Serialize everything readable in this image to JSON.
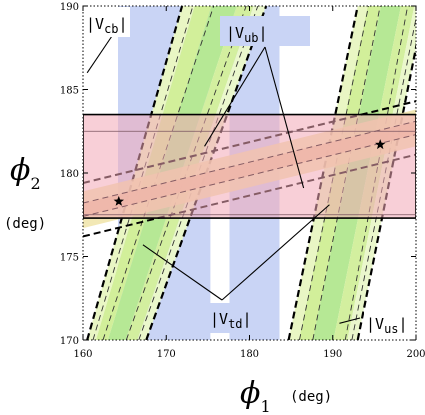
{
  "chart_data": {
    "type": "area",
    "title": "",
    "xlabel": "ϕ",
    "xlabel_sub": "1",
    "xunit": "(deg)",
    "ylabel": "ϕ",
    "ylabel_sub": "2",
    "yunit": "(deg)",
    "xlim": [
      160,
      200
    ],
    "ylim": [
      170,
      190
    ],
    "xticks": [
      160,
      170,
      180,
      190,
      200
    ],
    "yticks": [
      170,
      175,
      180,
      185,
      190
    ],
    "grid": false,
    "series": [
      {
        "name": "|V_td|",
        "label_text": "|V",
        "label_sub": "td",
        "label_end": "|",
        "color": "#c9d4f5",
        "polygons": [
          [
            [
              166.9,
              170
            ],
            [
              175.3,
              170
            ],
            [
              175.3,
              190
            ],
            [
              166.9,
              190
            ]
          ],
          [
            [
              164.2,
              170
            ],
            [
              167.0,
              170
            ],
            [
              167.0,
              190
            ],
            [
              164.2,
              190
            ]
          ],
          [
            [
              177.6,
              170
            ],
            [
              183.6,
              170
            ],
            [
              183.6,
              190
            ],
            [
              177.6,
              190
            ]
          ]
        ]
      },
      {
        "name": "|V_cb|",
        "label_text": "|V",
        "label_sub": "cb",
        "label_end": "|",
        "colors": [
          "#e9f6c4",
          "#d2ef9a",
          "#b6e895",
          "#d3ef9f",
          "#eaf7cc"
        ],
        "bands": [
          [
            [
              160.5,
              170.0
            ],
            [
              163.4,
              170.0
            ],
            [
              177.5,
              190.0
            ],
            [
              171.9,
              190.0
            ]
          ],
          [
            [
              163.4,
              170.0
            ],
            [
              167.6,
              170.0
            ],
            [
              182.0,
              190.0
            ],
            [
              177.5,
              190.0
            ]
          ]
        ],
        "dashed_lines": [
          [
            [
              161.2,
              170.0
            ],
            [
              173.2,
              190.0
            ]
          ],
          [
            [
              162.4,
              170.0
            ],
            [
              175.7,
              190.0
            ]
          ],
          [
            [
              165.2,
              170.0
            ],
            [
              179.6,
              190.0
            ]
          ],
          [
            [
              166.7,
              170.0
            ],
            [
              181.0,
              190.0
            ]
          ]
        ]
      },
      {
        "name": "|V_us|",
        "label_text": "|V",
        "label_sub": "us",
        "label_end": "|",
        "colors": [
          "#e9f6c4",
          "#d2ef9a",
          "#b6e895",
          "#d3ef9f",
          "#eaf7cc"
        ],
        "bands": [
          [
            [
              184.7,
              170.0
            ],
            [
              189.9,
              170.0
            ],
            [
              197.4,
              190.0
            ],
            [
              193.0,
              190.0
            ]
          ],
          [
            [
              189.9,
              170.0
            ],
            [
              193.0,
              170.0
            ],
            [
              201.0,
              190.0
            ],
            [
              197.4,
              190.0
            ]
          ]
        ],
        "dashed_lines": [
          [
            [
              186.0,
              170.0
            ],
            [
              194.3,
              190.0
            ]
          ],
          [
            [
              187.6,
              170.0
            ],
            [
              195.7,
              190.0
            ]
          ],
          [
            [
              191.5,
              170.0
            ],
            [
              199.0,
              190.0
            ]
          ],
          [
            [
              192.3,
              170.0
            ],
            [
              200.3,
              190.0
            ]
          ]
        ]
      },
      {
        "name": "|V_ub|",
        "label_text": "|V",
        "label_sub": "ub",
        "label_end": "|",
        "band_fill": "#f0e4a8",
        "core_fill": "#e9c99b",
        "band": [
          [
            160,
            176.7
          ],
          [
            160,
            178.9
          ],
          [
            200,
            183.8
          ],
          [
            200,
            181.6
          ]
        ],
        "core": [
          [
            160,
            177.4
          ],
          [
            160,
            178.2
          ],
          [
            200,
            183.1
          ],
          [
            200,
            182.3
          ]
        ],
        "dashed_lines": [
          [
            [
              160,
              176.2
            ],
            [
              200,
              181.1
            ]
          ],
          [
            [
              160,
              177.4
            ],
            [
              200,
              182.3
            ]
          ],
          [
            [
              160,
              178.2
            ],
            [
              200,
              183.1
            ]
          ],
          [
            [
              160,
              179.4
            ],
            [
              200,
              184.3
            ]
          ]
        ]
      },
      {
        "name": "phi2 band",
        "color": "#f3a8b6",
        "alpha": 0.55,
        "rect": [
          [
            160,
            177.3
          ],
          [
            200,
            183.5
          ]
        ],
        "inner_lines": [
          177.5,
          182.5
        ]
      }
    ],
    "markers": [
      {
        "x": 164.3,
        "y": 178.3,
        "symbol": "star"
      },
      {
        "x": 195.7,
        "y": 181.7,
        "symbol": "star"
      }
    ],
    "annotations": [
      {
        "label": "|V_cb|",
        "pointers": [
          [
            160.5,
            186.0
          ]
        ]
      },
      {
        "label": "|V_ub|",
        "pointers": [
          [
            174.6,
            181.6
          ],
          [
            186.5,
            179.1
          ]
        ]
      },
      {
        "label": "|V_td|",
        "pointers": [
          [
            167.2,
            175.7
          ],
          [
            189.6,
            178.1
          ]
        ]
      },
      {
        "label": "|V_us|",
        "pointers": [
          [
            190.8,
            171.0
          ]
        ]
      }
    ]
  }
}
